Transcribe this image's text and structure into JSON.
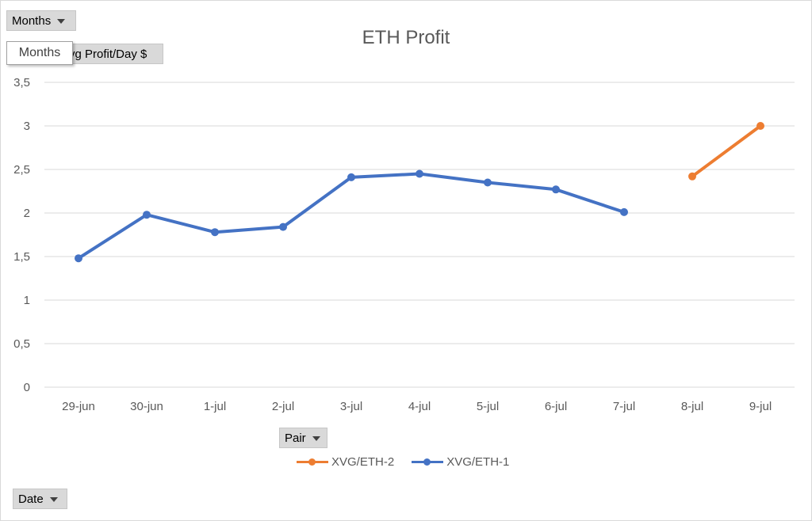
{
  "controls": {
    "months_label": "Months",
    "value_field_label": "vg Profit/Day $",
    "tooltip_text": "Months",
    "pair_label": "Pair",
    "date_label": "Date"
  },
  "colors": {
    "xvg_eth_1": "#4472c4",
    "xvg_eth_2": "#ed7d31",
    "grid": "#d9d9d9"
  },
  "chart_data": {
    "type": "line",
    "title": "ETH Profit",
    "xlabel": "",
    "ylabel": "",
    "categories": [
      "29-jun",
      "30-jun",
      "1-jul",
      "2-jul",
      "3-jul",
      "4-jul",
      "5-jul",
      "6-jul",
      "7-jul",
      "8-jul",
      "9-jul"
    ],
    "y_ticks": [
      "0",
      "0,5",
      "1",
      "1,5",
      "2",
      "2,5",
      "3",
      "3,5"
    ],
    "ylim": [
      0,
      3.5
    ],
    "grid": true,
    "legend_position": "bottom",
    "series": [
      {
        "name": "XVG/ETH-2",
        "color": "#ed7d31",
        "values": [
          null,
          null,
          null,
          null,
          null,
          null,
          null,
          null,
          null,
          2.42,
          3.0
        ]
      },
      {
        "name": "XVG/ETH-1",
        "color": "#4472c4",
        "values": [
          1.48,
          1.98,
          1.78,
          1.84,
          2.41,
          2.45,
          2.35,
          2.27,
          2.01,
          null,
          null
        ]
      }
    ]
  }
}
